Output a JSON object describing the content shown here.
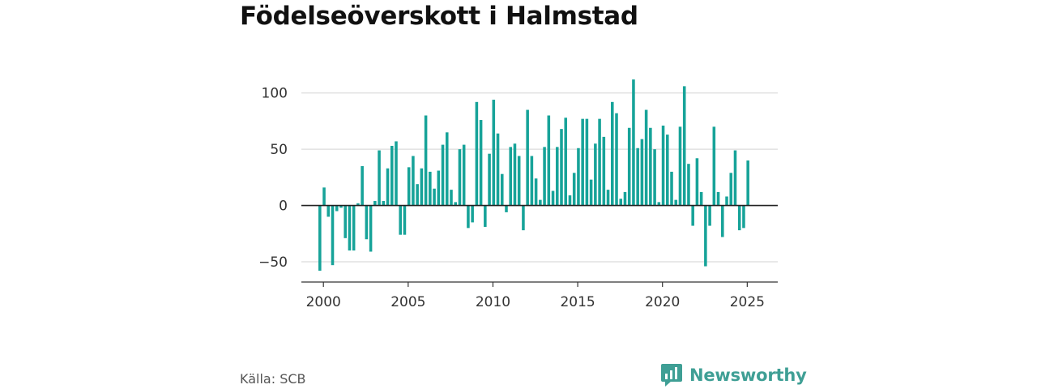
{
  "title": "Födelseöverskott i Halmstad",
  "source": "Källa: SCB",
  "brand": {
    "name": "Newsworthy",
    "icon": "bar-chart-speech-icon",
    "color": "#3f9f95"
  },
  "colors": {
    "bar": "#17a399",
    "grid": "#dcdcdc",
    "zero_line": "#222222"
  },
  "chart_data": {
    "type": "bar",
    "title": "Födelseöverskott i Halmstad",
    "xlabel": "",
    "ylabel": "",
    "x_ticks": [
      2000,
      2005,
      2010,
      2015,
      2020,
      2025
    ],
    "y_ticks": [
      -50,
      0,
      50,
      100
    ],
    "y_tick_labels": [
      "−50",
      "0",
      "50",
      "100"
    ],
    "ylim": [
      -68,
      125
    ],
    "xlim": [
      1998.7,
      2026.8
    ],
    "grid": true,
    "legend": "none",
    "series": [
      {
        "periods": [
          "2000-Q1",
          "2000-Q2",
          "2000-Q3",
          "2000-Q4",
          "2001-Q1",
          "2001-Q2",
          "2001-Q3",
          "2001-Q4",
          "2002-Q1",
          "2002-Q2",
          "2002-Q3",
          "2002-Q4",
          "2003-Q1",
          "2003-Q2",
          "2003-Q3",
          "2003-Q4",
          "2004-Q1",
          "2004-Q2",
          "2004-Q3",
          "2004-Q4",
          "2005-Q1",
          "2005-Q2",
          "2005-Q3",
          "2005-Q4",
          "2006-Q1",
          "2006-Q2",
          "2006-Q3",
          "2006-Q4",
          "2007-Q1",
          "2007-Q2",
          "2007-Q3",
          "2007-Q4",
          "2008-Q1",
          "2008-Q2",
          "2008-Q3",
          "2008-Q4",
          "2009-Q1",
          "2009-Q2",
          "2009-Q3",
          "2009-Q4",
          "2010-Q1",
          "2010-Q2",
          "2010-Q3",
          "2010-Q4",
          "2011-Q1",
          "2011-Q2",
          "2011-Q3",
          "2011-Q4",
          "2012-Q1",
          "2012-Q2",
          "2012-Q3",
          "2012-Q4",
          "2013-Q1",
          "2013-Q2",
          "2013-Q3",
          "2013-Q4",
          "2014-Q1",
          "2014-Q2",
          "2014-Q3",
          "2014-Q4",
          "2015-Q1",
          "2015-Q2",
          "2015-Q3",
          "2015-Q4",
          "2016-Q1",
          "2016-Q2",
          "2016-Q3",
          "2016-Q4",
          "2017-Q1",
          "2017-Q2",
          "2017-Q3",
          "2017-Q4",
          "2018-Q1",
          "2018-Q2",
          "2018-Q3",
          "2018-Q4",
          "2019-Q1",
          "2019-Q2",
          "2019-Q3",
          "2019-Q4",
          "2020-Q1",
          "2020-Q2",
          "2020-Q3",
          "2020-Q4",
          "2021-Q1",
          "2021-Q2",
          "2021-Q3",
          "2021-Q4",
          "2022-Q1",
          "2022-Q2",
          "2022-Q3",
          "2022-Q4",
          "2023-Q1",
          "2023-Q2",
          "2023-Q3",
          "2023-Q4",
          "2024-Q1",
          "2024-Q2",
          "2024-Q3",
          "2024-Q4",
          "2025-Q1",
          "2025-Q2"
        ],
        "values": [
          -58,
          16,
          -10,
          -53,
          -5,
          -2,
          -29,
          -40,
          -40,
          2,
          35,
          -30,
          -41,
          4,
          49,
          4,
          33,
          53,
          57,
          -26,
          -26,
          34,
          44,
          19,
          33,
          80,
          30,
          15,
          31,
          54,
          65,
          14,
          3,
          50,
          54,
          -20,
          -15,
          92,
          76,
          -19,
          46,
          94,
          64,
          28,
          -6,
          52,
          55,
          44,
          -22,
          85,
          44,
          24,
          5,
          52,
          80,
          13,
          52,
          68,
          78,
          9,
          29,
          51,
          77,
          77,
          23,
          55,
          77,
          61,
          14,
          92,
          82,
          6,
          12,
          69,
          112,
          51,
          59,
          85,
          69,
          50,
          3,
          71,
          63,
          30,
          5,
          70,
          106,
          37,
          -18,
          42,
          12,
          -54,
          -18,
          70,
          12,
          -28,
          8,
          29,
          49,
          -22,
          -20,
          40
        ]
      }
    ]
  }
}
